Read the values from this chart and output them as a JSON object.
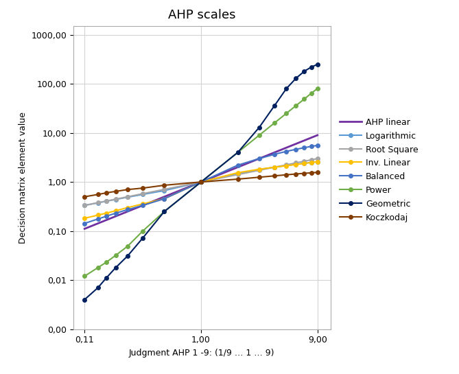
{
  "title": "AHP scales",
  "xlabel": "Judgment AHP 1 -9: (1/9 … 1 … 9)",
  "ylabel": "Decision matrix element value",
  "x_judgments": [
    0.111,
    0.143,
    0.167,
    0.2,
    0.25,
    0.333,
    0.5,
    1.0,
    2.0,
    3.0,
    4.0,
    5.0,
    6.0,
    7.0,
    8.0,
    9.0
  ],
  "xticks": [
    0.111,
    1.0,
    9.0
  ],
  "xtick_labels": [
    "0,11",
    "1,00",
    "9,00"
  ],
  "yticks": [
    0.001,
    0.01,
    0.1,
    1.0,
    10.0,
    100.0,
    1000.0
  ],
  "ytick_labels": [
    "0,00",
    "0,01",
    "0,10",
    "1,00",
    "10,00",
    "100,00",
    "1000,00"
  ],
  "series": {
    "AHP linear": {
      "color": "#7030A0",
      "linewidth": 2.0,
      "marker": null,
      "values": [
        0.111,
        0.143,
        0.167,
        0.2,
        0.25,
        0.333,
        0.5,
        1.0,
        2.0,
        3.0,
        4.0,
        5.0,
        6.0,
        7.0,
        8.0,
        9.0
      ]
    },
    "Logarithmic": {
      "color": "#5B9BD5",
      "linewidth": 1.5,
      "marker": "o",
      "markersize": 4,
      "values": [
        0.333,
        0.376,
        0.405,
        0.441,
        0.489,
        0.557,
        0.667,
        1.0,
        1.5,
        1.795,
        2.0,
        2.161,
        2.292,
        2.404,
        2.5,
        2.585
      ]
    },
    "Root Square": {
      "color": "#A5A5A5",
      "linewidth": 1.5,
      "marker": "o",
      "markersize": 4,
      "values": [
        0.333,
        0.378,
        0.408,
        0.447,
        0.5,
        0.577,
        0.707,
        1.0,
        1.414,
        1.732,
        2.0,
        2.236,
        2.449,
        2.646,
        2.828,
        3.0
      ]
    },
    "Inv. Linear": {
      "color": "#FFC000",
      "linewidth": 1.5,
      "marker": "o",
      "markersize": 4,
      "values": [
        0.182,
        0.211,
        0.231,
        0.259,
        0.3,
        0.357,
        0.455,
        1.0,
        1.545,
        1.818,
        2.0,
        2.143,
        2.273,
        2.385,
        2.5,
        2.6
      ]
    },
    "Balanced": {
      "color": "#4472C4",
      "linewidth": 1.5,
      "marker": "o",
      "markersize": 4,
      "values": [
        0.143,
        0.176,
        0.2,
        0.231,
        0.273,
        0.333,
        0.455,
        1.0,
        2.2,
        3.0,
        3.667,
        4.2,
        4.636,
        5.0,
        5.308,
        5.571
      ]
    },
    "Power": {
      "color": "#70AD47",
      "linewidth": 1.5,
      "marker": "o",
      "markersize": 4,
      "values": [
        0.012,
        0.018,
        0.023,
        0.032,
        0.049,
        0.1,
        0.25,
        1.0,
        4.0,
        9.0,
        16.0,
        25.0,
        36.0,
        49.0,
        64.0,
        81.0
      ]
    },
    "Geometric": {
      "color": "#002060",
      "linewidth": 1.5,
      "marker": "o",
      "markersize": 4,
      "values": [
        0.004,
        0.007,
        0.011,
        0.018,
        0.031,
        0.072,
        0.25,
        1.0,
        4.0,
        13.0,
        36.0,
        80.0,
        130.0,
        180.0,
        220.0,
        250.0
      ]
    },
    "Koczkodaj": {
      "color": "#833C00",
      "linewidth": 1.5,
      "marker": "o",
      "markersize": 4,
      "values": [
        0.5,
        0.556,
        0.6,
        0.643,
        0.7,
        0.75,
        0.857,
        1.0,
        1.143,
        1.25,
        1.333,
        1.4,
        1.455,
        1.5,
        1.538,
        1.571
      ]
    }
  },
  "background_color": "#FFFFFF",
  "plot_bg_color": "#FFFFFF",
  "grid_color": "#D3D3D3",
  "xlim": [
    0.09,
    11.5
  ],
  "ylim": [
    0.003,
    1500.0
  ]
}
